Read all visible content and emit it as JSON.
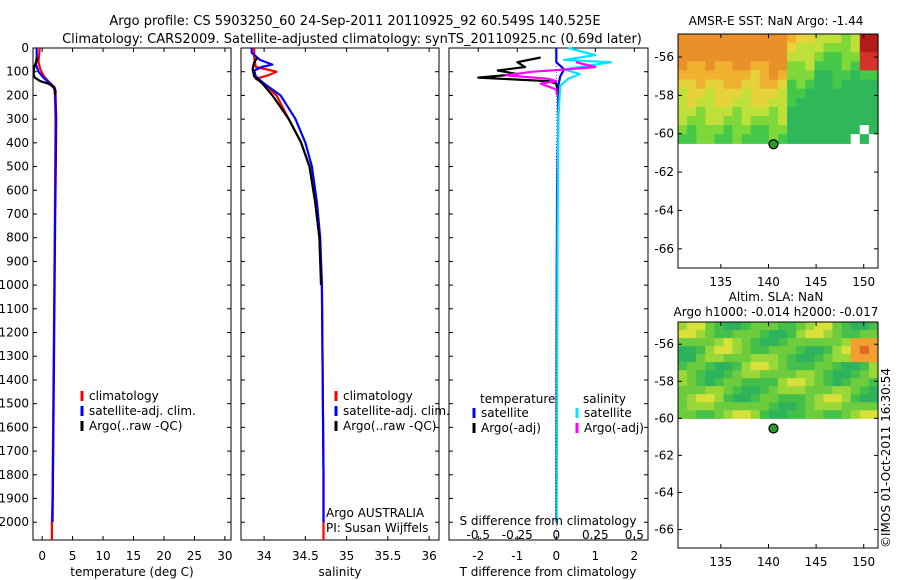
{
  "figure": {
    "title_line1": "Argo profile: CS 5903250_60 24-Sep-2011 20110925_92 60.549S 140.525E",
    "title_line2": "Climatology: CARS2009. Satellite-adjusted climatology: synTS_20110925.nc (0.69d later)",
    "side_stamp": "©IMOS 01-Oct-2011 16:30:54"
  },
  "colors": {
    "climatology": "#ff0000",
    "satellite": "#0000ff",
    "argo": "#000000",
    "sal_satellite": "#00e5ff",
    "sal_argo": "#ff00ff"
  },
  "chart_data": [
    {
      "id": "temperature",
      "type": "line",
      "xlabel": "temperature (deg C)",
      "xlim": [
        -1.5,
        31
      ],
      "ylim": [
        0,
        2075
      ],
      "y_reversed": true,
      "xticks": [
        "0",
        "5",
        "10",
        "15",
        "20",
        "25",
        "30"
      ],
      "yticks": [
        "0",
        "100",
        "200",
        "300",
        "400",
        "500",
        "600",
        "700",
        "800",
        "900",
        "1000",
        "1100",
        "1200",
        "1300",
        "1400",
        "1500",
        "1600",
        "1700",
        "1800",
        "1900",
        "2000"
      ],
      "legend": [
        "climatology",
        "satellite-adj. clim.",
        "Argo(..raw -QC)"
      ],
      "legend_position": "center",
      "series": [
        {
          "name": "climatology",
          "color": "#ff0000",
          "points": [
            [
              -0.4,
              0
            ],
            [
              -0.5,
              30
            ],
            [
              -0.6,
              60
            ],
            [
              -0.3,
              90
            ],
            [
              0.3,
              120
            ],
            [
              1.2,
              145
            ],
            [
              2.0,
              165
            ],
            [
              2.1,
              200
            ],
            [
              2.2,
              300
            ],
            [
              2.15,
              500
            ],
            [
              2.1,
              700
            ],
            [
              2.0,
              1000
            ],
            [
              1.9,
              1300
            ],
            [
              1.8,
              1600
            ],
            [
              1.7,
              1900
            ],
            [
              1.6,
              2000
            ],
            [
              1.6,
              2075
            ]
          ]
        },
        {
          "name": "satellite-adj. clim.",
          "color": "#0000ff",
          "points": [
            [
              -0.9,
              0
            ],
            [
              -0.9,
              40
            ],
            [
              -1.0,
              70
            ],
            [
              -0.6,
              100
            ],
            [
              0.2,
              125
            ],
            [
              1.3,
              150
            ],
            [
              2.1,
              175
            ],
            [
              2.2,
              200
            ],
            [
              2.3,
              300
            ],
            [
              2.25,
              500
            ],
            [
              2.15,
              700
            ],
            [
              2.05,
              1000
            ],
            [
              1.95,
              1300
            ],
            [
              1.85,
              1600
            ],
            [
              1.75,
              1900
            ],
            [
              1.7,
              2000
            ]
          ]
        },
        {
          "name": "Argo(..raw -QC)",
          "color": "#000000",
          "points": [
            [
              -0.8,
              40
            ],
            [
              -1.0,
              60
            ],
            [
              -1.3,
              80
            ],
            [
              -1.4,
              110
            ],
            [
              -1.2,
              125
            ],
            [
              -0.3,
              140
            ],
            [
              1.0,
              150
            ],
            [
              2.0,
              165
            ],
            [
              2.2,
              180
            ],
            [
              2.2,
              200
            ]
          ]
        }
      ]
    },
    {
      "id": "salinity",
      "type": "line",
      "xlabel": "salinity",
      "xlim": [
        33.72,
        36.12
      ],
      "ylim": [
        0,
        2075
      ],
      "y_reversed": true,
      "xticks": [
        "34",
        "34.5",
        "35",
        "35.5",
        "36"
      ],
      "legend": [
        "climatology",
        "satellite-adj. clim.",
        "Argo(..raw -QC)"
      ],
      "legend_position": "center-right",
      "annotation_line1": "Argo AUSTRALIA",
      "annotation_line2": "PI: Susan Wijffels",
      "series": [
        {
          "name": "climatology",
          "color": "#ff0000",
          "points": [
            [
              33.88,
              0
            ],
            [
              33.88,
              40
            ],
            [
              33.9,
              80
            ],
            [
              34.15,
              100
            ],
            [
              34.05,
              115
            ],
            [
              33.9,
              130
            ],
            [
              34.0,
              150
            ],
            [
              34.15,
              200
            ],
            [
              34.3,
              300
            ],
            [
              34.45,
              400
            ],
            [
              34.55,
              500
            ],
            [
              34.62,
              650
            ],
            [
              34.67,
              800
            ],
            [
              34.7,
              1000
            ],
            [
              34.71,
              1400
            ],
            [
              34.72,
              1800
            ],
            [
              34.72,
              2000
            ],
            [
              34.72,
              2075
            ]
          ]
        },
        {
          "name": "satellite-adj. clim.",
          "color": "#0000ff",
          "points": [
            [
              33.85,
              0
            ],
            [
              33.85,
              20
            ],
            [
              33.95,
              50
            ],
            [
              34.1,
              70
            ],
            [
              33.97,
              80
            ],
            [
              33.88,
              95
            ],
            [
              33.9,
              120
            ],
            [
              34.0,
              150
            ],
            [
              34.2,
              200
            ],
            [
              34.38,
              300
            ],
            [
              34.5,
              400
            ],
            [
              34.58,
              500
            ],
            [
              34.64,
              650
            ],
            [
              34.68,
              800
            ],
            [
              34.7,
              1000
            ],
            [
              34.71,
              1400
            ],
            [
              34.72,
              1800
            ],
            [
              34.72,
              2000
            ]
          ]
        },
        {
          "name": "Argo(..raw -QC)",
          "color": "#000000",
          "points": [
            [
              33.92,
              40
            ],
            [
              33.88,
              60
            ],
            [
              33.86,
              90
            ],
            [
              33.88,
              120
            ],
            [
              33.98,
              150
            ],
            [
              34.1,
              200
            ],
            [
              34.3,
              300
            ],
            [
              34.45,
              400
            ],
            [
              34.55,
              500
            ],
            [
              34.62,
              650
            ],
            [
              34.67,
              800
            ],
            [
              34.69,
              1000
            ]
          ]
        }
      ]
    },
    {
      "id": "difference",
      "type": "line",
      "xlabel": "T difference from climatology",
      "xlabel_top": "S difference from climatology",
      "xlim": [
        -2.75,
        2.35
      ],
      "ylim": [
        0,
        2075
      ],
      "y_reversed": true,
      "xticks": [
        "-2",
        "-1",
        "0",
        "1",
        "2"
      ],
      "xticks_top": [
        "-0.5",
        "-0.25",
        "0",
        "0.25",
        "0.5"
      ],
      "legend_temperature_title": "temperature",
      "legend_salinity_title": "salinity",
      "legend": [
        "satellite",
        "Argo(-adj)",
        "satellite",
        "Argo(-adj)"
      ],
      "legend_position": "center",
      "series": [
        {
          "name": "satellite",
          "color": "#0000ff",
          "points": [
            [
              0,
              0
            ],
            [
              0,
              60
            ],
            [
              0.2,
              90
            ],
            [
              0.1,
              120
            ],
            [
              0.05,
              160
            ],
            [
              0.05,
              300
            ],
            [
              0.02,
              600
            ],
            [
              0.01,
              1000
            ],
            [
              0,
              2000
            ]
          ]
        },
        {
          "name": "Argo(-adj)",
          "color": "#000000",
          "points": [
            [
              -0.4,
              40
            ],
            [
              -1.0,
              60
            ],
            [
              -0.8,
              80
            ],
            [
              -1.5,
              95
            ],
            [
              -1.0,
              110
            ],
            [
              -2.0,
              125
            ],
            [
              -0.2,
              140
            ],
            [
              0,
              150
            ],
            [
              0.05,
              200
            ]
          ]
        },
        {
          "name": "satellite",
          "color": "#00e5ff",
          "points": [
            [
              0.3,
              0
            ],
            [
              1.0,
              30
            ],
            [
              0.2,
              50
            ],
            [
              1.4,
              60
            ],
            [
              1.0,
              70
            ],
            [
              0.2,
              90
            ],
            [
              0.6,
              110
            ],
            [
              0.3,
              130
            ],
            [
              0.1,
              160
            ],
            [
              0.05,
              300
            ],
            [
              0.03,
              800
            ],
            [
              0.02,
              1400
            ],
            [
              0.01,
              2000
            ]
          ]
        },
        {
          "name": "Argo(-adj)",
          "color": "#ff00ff",
          "points": [
            [
              0.5,
              60
            ],
            [
              1.0,
              80
            ],
            [
              0.3,
              90
            ],
            [
              -0.6,
              100
            ],
            [
              -1.3,
              115
            ],
            [
              -0.2,
              130
            ],
            [
              0.0,
              140
            ],
            [
              -0.4,
              150
            ],
            [
              0,
              175
            ],
            [
              0.02,
              200
            ]
          ]
        }
      ]
    },
    {
      "id": "sst-map",
      "type": "heatmap",
      "title": "AMSR-E SST: NaN Argo: -1.44",
      "xticks": [
        "135",
        "140",
        "145",
        "150"
      ],
      "yticks": [
        "-56",
        "-58",
        "-60",
        "-62",
        "-64",
        "-66"
      ],
      "xlim": [
        130.5,
        151.5
      ],
      "ylim": [
        -67,
        -54.8
      ],
      "argo_position": [
        140.525,
        -60.549
      ],
      "data_extent_lat_south": -60.5
    },
    {
      "id": "sla-map",
      "type": "heatmap",
      "title": "Altim. SLA: NaN",
      "subtitle": "Argo h1000: -0.014 h2000: -0.017",
      "xticks": [
        "135",
        "140",
        "145",
        "150"
      ],
      "yticks": [
        "-56",
        "-58",
        "-60",
        "-62",
        "-64",
        "-66"
      ],
      "xlim": [
        130.5,
        151.5
      ],
      "ylim": [
        -67,
        -54.8
      ],
      "argo_position": [
        140.525,
        -60.549
      ],
      "data_extent_lat_south": -60.0
    }
  ]
}
